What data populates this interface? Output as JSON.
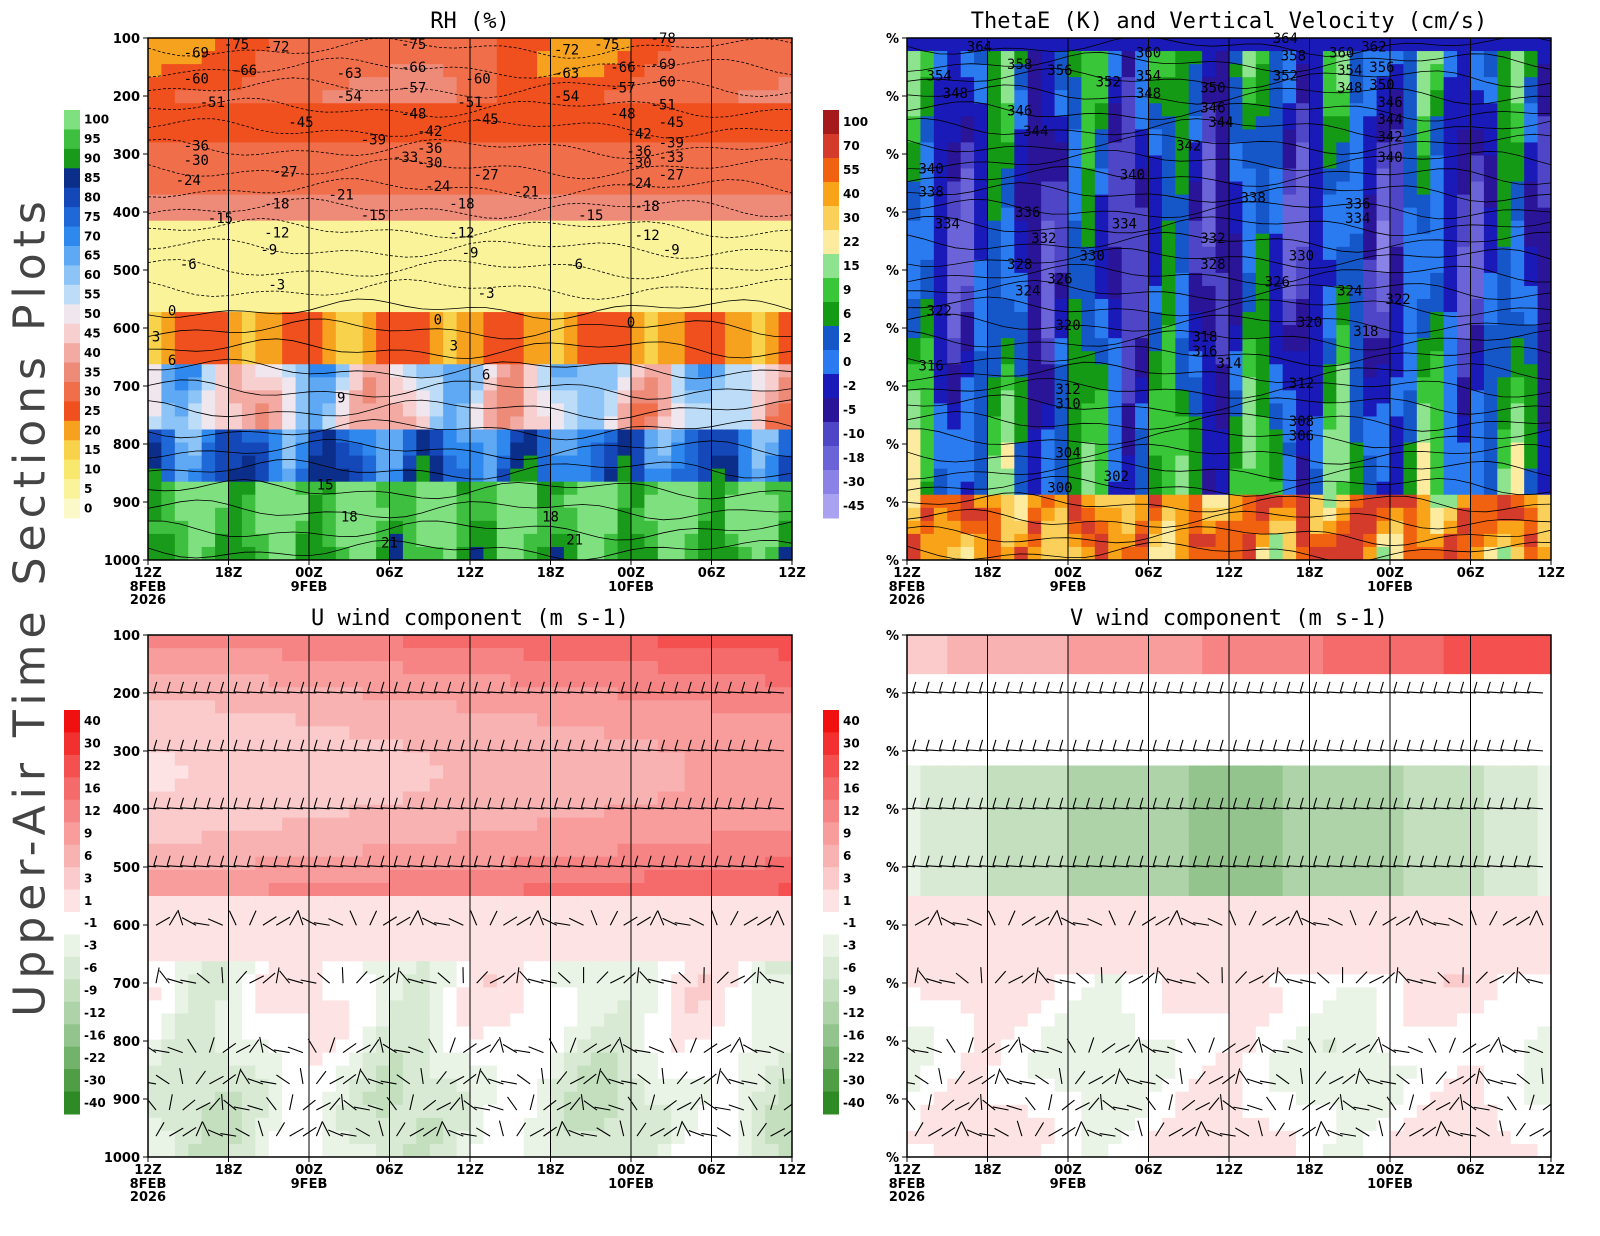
{
  "figure_title": "Upper-Air Time Sections Plots",
  "time_axis": {
    "ticks": [
      "12Z",
      "18Z",
      "00Z",
      "06Z",
      "12Z",
      "18Z",
      "00Z",
      "06Z",
      "12Z"
    ],
    "date_labels": [
      {
        "tick": 0,
        "lines": [
          "8FEB",
          "2026"
        ]
      },
      {
        "tick": 2,
        "lines": [
          "9FEB"
        ]
      },
      {
        "tick": 6,
        "lines": [
          "10FEB"
        ]
      }
    ]
  },
  "pressure_ticks": [
    "100",
    "200",
    "300",
    "400",
    "500",
    "600",
    "700",
    "800",
    "900",
    "1000"
  ],
  "pressure_ticks_masked": [
    "%",
    "%",
    "%",
    "%",
    "%",
    "%",
    "%",
    "%",
    "%",
    "%"
  ],
  "chart_data": [
    {
      "type": "heatmap",
      "title": "RH (%)",
      "y_unit": "hPa",
      "ylim": [
        1000,
        100
      ],
      "x_ticks": [
        "12Z",
        "18Z",
        "00Z",
        "06Z",
        "12Z",
        "18Z",
        "00Z",
        "06Z",
        "12Z"
      ],
      "colorbar": {
        "labels": [
          "100",
          "95",
          "90",
          "85",
          "80",
          "75",
          "70",
          "65",
          "60",
          "55",
          "50",
          "45",
          "40",
          "35",
          "30",
          "25",
          "20",
          "15",
          "10",
          "5",
          "0"
        ],
        "colors": [
          "#7fe07f",
          "#3fbf3f",
          "#1a9a1a",
          "#0b2e8a",
          "#1447b8",
          "#1f68d8",
          "#2f88ee",
          "#5fa8f4",
          "#8cc4f7",
          "#bcdcf8",
          "#efe6ee",
          "#f7cfcf",
          "#f2aaa2",
          "#ee8a78",
          "#f06e4a",
          "#f0501e",
          "#f6a21f",
          "#f8d24a",
          "#f9e86e",
          "#faf39a",
          "#fcf9c8"
        ]
      },
      "contour_labels_temperature_C": [
        {
          "t": 0.6,
          "p": 125,
          "v": "-69"
        },
        {
          "t": 1.1,
          "p": 110,
          "v": "-75"
        },
        {
          "t": 1.2,
          "p": 155,
          "v": "-66"
        },
        {
          "t": 1.6,
          "p": 115,
          "v": "-72"
        },
        {
          "t": 0.6,
          "p": 170,
          "v": "-60"
        },
        {
          "t": 0.8,
          "p": 210,
          "v": "-51"
        },
        {
          "t": 0.6,
          "p": 285,
          "v": "-36"
        },
        {
          "t": 0.6,
          "p": 310,
          "v": "-30"
        },
        {
          "t": 0.5,
          "p": 345,
          "v": "-24"
        },
        {
          "t": 0.9,
          "p": 410,
          "v": "-15"
        },
        {
          "t": 0.5,
          "p": 490,
          "v": "-6"
        },
        {
          "t": 1.6,
          "p": 385,
          "v": "-18"
        },
        {
          "t": 1.6,
          "p": 435,
          "v": "-12"
        },
        {
          "t": 1.5,
          "p": 465,
          "v": "-9"
        },
        {
          "t": 1.6,
          "p": 525,
          "v": "-3"
        },
        {
          "t": 1.7,
          "p": 330,
          "v": "-27"
        },
        {
          "t": 1.9,
          "p": 245,
          "v": "-45"
        },
        {
          "t": 2.5,
          "p": 160,
          "v": "-63"
        },
        {
          "t": 2.5,
          "p": 200,
          "v": "-54"
        },
        {
          "t": 2.4,
          "p": 370,
          "v": "-21"
        },
        {
          "t": 2.8,
          "p": 275,
          "v": "-39"
        },
        {
          "t": 3.2,
          "p": 305,
          "v": "-33"
        },
        {
          "t": 2.8,
          "p": 405,
          "v": "-15"
        },
        {
          "t": 3.3,
          "p": 110,
          "v": "-75"
        },
        {
          "t": 3.3,
          "p": 150,
          "v": "-66"
        },
        {
          "t": 3.3,
          "p": 185,
          "v": "-57"
        },
        {
          "t": 3.3,
          "p": 230,
          "v": "-48"
        },
        {
          "t": 3.5,
          "p": 260,
          "v": "-42"
        },
        {
          "t": 3.5,
          "p": 290,
          "v": "-36"
        },
        {
          "t": 3.5,
          "p": 315,
          "v": "-30"
        },
        {
          "t": 3.6,
          "p": 355,
          "v": "-24"
        },
        {
          "t": 3.9,
          "p": 385,
          "v": "-18"
        },
        {
          "t": 3.9,
          "p": 435,
          "v": "-12"
        },
        {
          "t": 4.0,
          "p": 470,
          "v": "-9"
        },
        {
          "t": 4.2,
          "p": 540,
          "v": "-3"
        },
        {
          "t": 4.1,
          "p": 170,
          "v": "-60"
        },
        {
          "t": 4.0,
          "p": 210,
          "v": "-51"
        },
        {
          "t": 4.2,
          "p": 240,
          "v": "-45"
        },
        {
          "t": 4.2,
          "p": 335,
          "v": "-27"
        },
        {
          "t": 4.7,
          "p": 365,
          "v": "-21"
        },
        {
          "t": 5.2,
          "p": 120,
          "v": "-72"
        },
        {
          "t": 5.2,
          "p": 160,
          "v": "-63"
        },
        {
          "t": 5.2,
          "p": 200,
          "v": "-54"
        },
        {
          "t": 5.5,
          "p": 405,
          "v": "-15"
        },
        {
          "t": 5.3,
          "p": 490,
          "v": "-6"
        },
        {
          "t": 5.7,
          "p": 110,
          "v": "-75"
        },
        {
          "t": 5.9,
          "p": 150,
          "v": "-66"
        },
        {
          "t": 5.9,
          "p": 185,
          "v": "-57"
        },
        {
          "t": 5.9,
          "p": 230,
          "v": "-48"
        },
        {
          "t": 6.1,
          "p": 265,
          "v": "-42"
        },
        {
          "t": 6.1,
          "p": 295,
          "v": "-36"
        },
        {
          "t": 6.1,
          "p": 315,
          "v": "-30"
        },
        {
          "t": 6.1,
          "p": 350,
          "v": "-24"
        },
        {
          "t": 6.2,
          "p": 390,
          "v": "-18"
        },
        {
          "t": 6.2,
          "p": 440,
          "v": "-12"
        },
        {
          "t": 6.5,
          "p": 465,
          "v": "-9"
        },
        {
          "t": 6.4,
          "p": 100,
          "v": "-78"
        },
        {
          "t": 6.4,
          "p": 145,
          "v": "-69"
        },
        {
          "t": 6.4,
          "p": 175,
          "v": "-60"
        },
        {
          "t": 6.4,
          "p": 215,
          "v": "-51"
        },
        {
          "t": 6.5,
          "p": 245,
          "v": "-45"
        },
        {
          "t": 6.5,
          "p": 280,
          "v": "-39"
        },
        {
          "t": 6.5,
          "p": 305,
          "v": "-33"
        },
        {
          "t": 6.5,
          "p": 335,
          "v": "-27"
        },
        {
          "t": 0.3,
          "p": 570,
          "v": "0"
        },
        {
          "t": 0.1,
          "p": 615,
          "v": "3"
        },
        {
          "t": 0.3,
          "p": 655,
          "v": "6"
        },
        {
          "t": 3.6,
          "p": 585,
          "v": "0"
        },
        {
          "t": 3.8,
          "p": 630,
          "v": "3"
        },
        {
          "t": 4.2,
          "p": 680,
          "v": "6"
        },
        {
          "t": 2.4,
          "p": 720,
          "v": "9"
        },
        {
          "t": 2.2,
          "p": 870,
          "v": "15"
        },
        {
          "t": 2.5,
          "p": 925,
          "v": "18"
        },
        {
          "t": 3.0,
          "p": 970,
          "v": "21"
        },
        {
          "t": 5.0,
          "p": 925,
          "v": "18"
        },
        {
          "t": 5.3,
          "p": 965,
          "v": "21"
        },
        {
          "t": 6.0,
          "p": 590,
          "v": "0"
        }
      ]
    },
    {
      "type": "heatmap",
      "title": "ThetaE (K) and Vertical Velocity (cm/s)",
      "ylim": [
        1000,
        100
      ],
      "x_ticks": [
        "12Z",
        "18Z",
        "00Z",
        "06Z",
        "12Z",
        "18Z",
        "00Z",
        "06Z",
        "12Z"
      ],
      "colorbar": {
        "labels": [
          "100",
          "70",
          "55",
          "40",
          "30",
          "22",
          "15",
          "9",
          "6",
          "2",
          "0",
          "-2",
          "-5",
          "-10",
          "-18",
          "-30",
          "-45"
        ],
        "colors": [
          "#a51a1a",
          "#d43b2a",
          "#f0620f",
          "#f8a318",
          "#fbd05a",
          "#fdeca0",
          "#8ee38e",
          "#39c739",
          "#159a15",
          "#1557c8",
          "#2b7bf0",
          "#1a1ab8",
          "#2a1498",
          "#4e46c6",
          "#6b63d8",
          "#8a82e6",
          "#a8a2f0"
        ]
      },
      "contour_labels_thetaE_K": [
        {
          "t": 0.9,
          "p": 115,
          "v": "364"
        },
        {
          "t": 1.4,
          "p": 145,
          "v": "358"
        },
        {
          "t": 1.9,
          "p": 155,
          "v": "356"
        },
        {
          "t": 2.5,
          "p": 175,
          "v": "352"
        },
        {
          "t": 0.4,
          "p": 165,
          "v": "354"
        },
        {
          "t": 0.6,
          "p": 195,
          "v": "348"
        },
        {
          "t": 1.4,
          "p": 225,
          "v": "346"
        },
        {
          "t": 1.6,
          "p": 260,
          "v": "344"
        },
        {
          "t": 0.3,
          "p": 325,
          "v": "340"
        },
        {
          "t": 0.3,
          "p": 365,
          "v": "338"
        },
        {
          "t": 0.5,
          "p": 420,
          "v": "334"
        },
        {
          "t": 1.5,
          "p": 400,
          "v": "336"
        },
        {
          "t": 1.7,
          "p": 445,
          "v": "332"
        },
        {
          "t": 2.3,
          "p": 475,
          "v": "330"
        },
        {
          "t": 1.4,
          "p": 490,
          "v": "328"
        },
        {
          "t": 1.9,
          "p": 515,
          "v": "326"
        },
        {
          "t": 1.5,
          "p": 535,
          "v": "324"
        },
        {
          "t": 0.4,
          "p": 570,
          "v": "322"
        },
        {
          "t": 2.0,
          "p": 595,
          "v": "320"
        },
        {
          "t": 0.3,
          "p": 665,
          "v": "316"
        },
        {
          "t": 2.0,
          "p": 705,
          "v": "312"
        },
        {
          "t": 2.0,
          "p": 730,
          "v": "310"
        },
        {
          "t": 2.0,
          "p": 815,
          "v": "304"
        },
        {
          "t": 2.6,
          "p": 855,
          "v": "302"
        },
        {
          "t": 1.9,
          "p": 875,
          "v": "300"
        },
        {
          "t": 3.0,
          "p": 125,
          "v": "360"
        },
        {
          "t": 3.0,
          "p": 165,
          "v": "354"
        },
        {
          "t": 3.0,
          "p": 195,
          "v": "348"
        },
        {
          "t": 2.8,
          "p": 335,
          "v": "340"
        },
        {
          "t": 2.7,
          "p": 420,
          "v": "334"
        },
        {
          "t": 3.8,
          "p": 185,
          "v": "350"
        },
        {
          "t": 3.8,
          "p": 220,
          "v": "346"
        },
        {
          "t": 3.9,
          "p": 245,
          "v": "344"
        },
        {
          "t": 3.5,
          "p": 285,
          "v": "342"
        },
        {
          "t": 4.3,
          "p": 375,
          "v": "338"
        },
        {
          "t": 3.8,
          "p": 445,
          "v": "332"
        },
        {
          "t": 3.8,
          "p": 490,
          "v": "328"
        },
        {
          "t": 3.7,
          "p": 615,
          "v": "318"
        },
        {
          "t": 3.7,
          "p": 640,
          "v": "316"
        },
        {
          "t": 4.0,
          "p": 660,
          "v": "314"
        },
        {
          "t": 4.7,
          "p": 100,
          "v": "364"
        },
        {
          "t": 4.8,
          "p": 130,
          "v": "358"
        },
        {
          "t": 4.7,
          "p": 165,
          "v": "352"
        },
        {
          "t": 4.9,
          "p": 475,
          "v": "330"
        },
        {
          "t": 4.6,
          "p": 520,
          "v": "326"
        },
        {
          "t": 5.0,
          "p": 590,
          "v": "320"
        },
        {
          "t": 4.9,
          "p": 695,
          "v": "312"
        },
        {
          "t": 4.9,
          "p": 760,
          "v": "308"
        },
        {
          "t": 4.9,
          "p": 785,
          "v": "306"
        },
        {
          "t": 5.4,
          "p": 125,
          "v": "360"
        },
        {
          "t": 5.5,
          "p": 155,
          "v": "354"
        },
        {
          "t": 5.5,
          "p": 185,
          "v": "348"
        },
        {
          "t": 5.8,
          "p": 115,
          "v": "362"
        },
        {
          "t": 5.9,
          "p": 150,
          "v": "356"
        },
        {
          "t": 5.9,
          "p": 180,
          "v": "350"
        },
        {
          "t": 6.0,
          "p": 210,
          "v": "346"
        },
        {
          "t": 6.0,
          "p": 240,
          "v": "344"
        },
        {
          "t": 6.0,
          "p": 270,
          "v": "342"
        },
        {
          "t": 6.0,
          "p": 305,
          "v": "340"
        },
        {
          "t": 5.6,
          "p": 385,
          "v": "336"
        },
        {
          "t": 5.6,
          "p": 410,
          "v": "334"
        },
        {
          "t": 5.5,
          "p": 535,
          "v": "324"
        },
        {
          "t": 6.1,
          "p": 550,
          "v": "322"
        },
        {
          "t": 5.7,
          "p": 605,
          "v": "318"
        }
      ]
    },
    {
      "type": "heatmap",
      "title": "U wind component (m s-1)",
      "ylim": [
        1000,
        100
      ],
      "x_ticks": [
        "12Z",
        "18Z",
        "00Z",
        "06Z",
        "12Z",
        "18Z",
        "00Z",
        "06Z",
        "12Z"
      ],
      "colorbar": {
        "labels": [
          "40",
          "30",
          "22",
          "16",
          "12",
          "9",
          "6",
          "3",
          "1",
          "-1",
          "-3",
          "-6",
          "-9",
          "-12",
          "-16",
          "-22",
          "-30",
          "-40"
        ],
        "colors": [
          "#f01010",
          "#f23030",
          "#f45050",
          "#f56a6a",
          "#f78484",
          "#f89c9c",
          "#f9b2b2",
          "#fbcaca",
          "#fde3e3",
          "#ffffff",
          "#e9f3e6",
          "#d8ead4",
          "#c3dfbe",
          "#aed3a8",
          "#94c48d",
          "#73b26b",
          "#4f9e46",
          "#2e8a24"
        ]
      }
    },
    {
      "type": "heatmap",
      "title": "V wind component (m s-1)",
      "ylim": [
        1000,
        100
      ],
      "x_ticks": [
        "12Z",
        "18Z",
        "00Z",
        "06Z",
        "12Z",
        "18Z",
        "00Z",
        "06Z",
        "12Z"
      ],
      "colorbar": {
        "labels": [
          "40",
          "30",
          "22",
          "16",
          "12",
          "9",
          "6",
          "3",
          "1",
          "-1",
          "-3",
          "-6",
          "-9",
          "-12",
          "-16",
          "-22",
          "-30",
          "-40"
        ],
        "colors": [
          "#f01010",
          "#f23030",
          "#f45050",
          "#f56a6a",
          "#f78484",
          "#f89c9c",
          "#f9b2b2",
          "#fbcaca",
          "#fde3e3",
          "#ffffff",
          "#e9f3e6",
          "#d8ead4",
          "#c3dfbe",
          "#aed3a8",
          "#94c48d",
          "#73b26b",
          "#4f9e46",
          "#2e8a24"
        ]
      }
    }
  ]
}
